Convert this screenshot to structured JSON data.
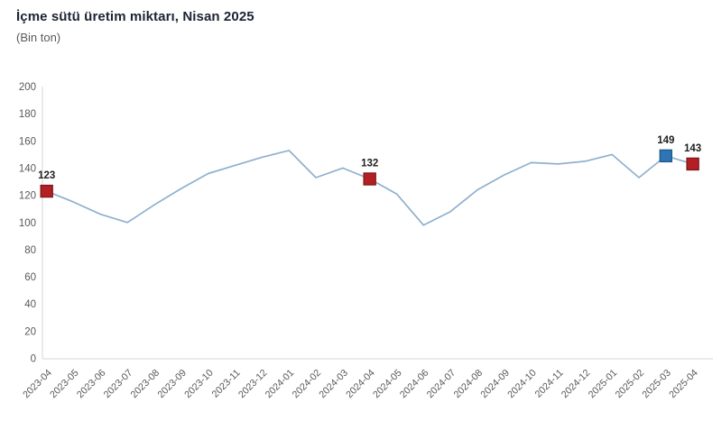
{
  "header": {
    "title": "İçme sütü üretim miktarı, Nisan 2025",
    "subtitle": "(Bin ton)"
  },
  "chart_data": {
    "type": "line",
    "title": "İçme sütü üretim miktarı, Nisan 2025",
    "subtitle": "(Bin ton)",
    "xlabel": "",
    "ylabel": "",
    "ylim": [
      0,
      200
    ],
    "ytick_step": 20,
    "ytick_labels": [
      "0",
      "20",
      "40",
      "60",
      "80",
      "100",
      "120",
      "140",
      "160",
      "180",
      "200"
    ],
    "grid": false,
    "legend": false,
    "categories": [
      "2023-04",
      "2023-05",
      "2023-06",
      "2023-07",
      "2023-08",
      "2023-09",
      "2023-10",
      "2023-11",
      "2023-12",
      "2024-01",
      "2024-02",
      "2024-03",
      "2024-04",
      "2024-05",
      "2024-06",
      "2024-07",
      "2024-08",
      "2024-09",
      "2024-10",
      "2024-11",
      "2024-12",
      "2025-01",
      "2025-02",
      "2025-03",
      "2025-04"
    ],
    "values": [
      123,
      115,
      106,
      100,
      113,
      125,
      136,
      142,
      148,
      153,
      133,
      140,
      132,
      121,
      98,
      108,
      124,
      135,
      144,
      143,
      145,
      150,
      133,
      149,
      143
    ],
    "annotated_points": [
      {
        "index": 0,
        "label": "123",
        "marker_fill": "#b41f24",
        "marker_stroke": "#82181c"
      },
      {
        "index": 12,
        "label": "132",
        "marker_fill": "#b41f24",
        "marker_stroke": "#82181c"
      },
      {
        "index": 23,
        "label": "149",
        "marker_fill": "#2e75b6",
        "marker_stroke": "#1f5a8e"
      },
      {
        "index": 24,
        "label": "143",
        "marker_fill": "#b41f24",
        "marker_stroke": "#82181c"
      }
    ],
    "colors": {
      "line": "#8fb0cd",
      "axis": "#d6d6d6",
      "tick_text": "#595959",
      "data_label_text": "#1f1f1f",
      "title_text": "#1c2433",
      "subtitle_text": "#595959"
    }
  }
}
